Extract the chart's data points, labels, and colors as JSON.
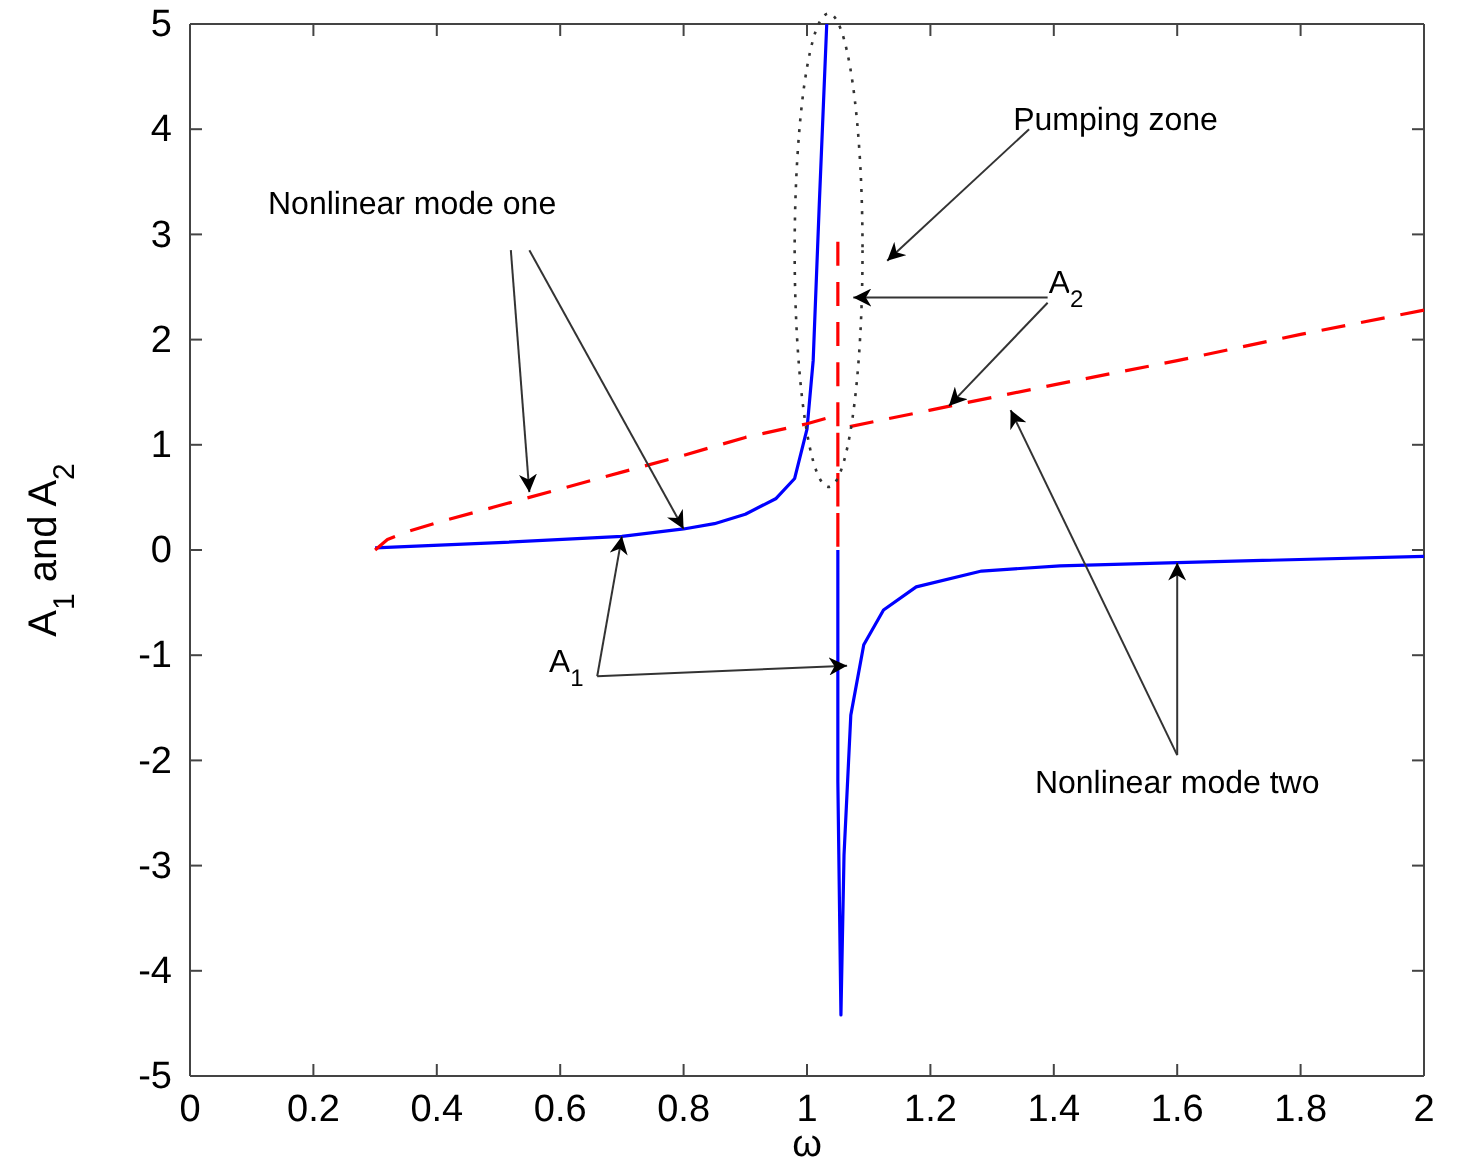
{
  "chart_data": {
    "type": "line",
    "xlabel": "ω",
    "ylabel": "A$_{1}$ and A$_{2}$",
    "xlim": [
      0,
      2
    ],
    "ylim": [
      -5,
      5
    ],
    "xticks": [
      0,
      0.2,
      0.4,
      0.6,
      0.8,
      1,
      1.2,
      1.4,
      1.6,
      1.8,
      2
    ],
    "yticks": [
      -5,
      -4,
      -3,
      -2,
      -1,
      0,
      1,
      2,
      3,
      4,
      5
    ],
    "grid": false,
    "marker": "none",
    "series": [
      {
        "color": "#0000ff",
        "line_style": "solid",
        "x": [
          0.3,
          0.5,
          0.7,
          0.8,
          0.85,
          0.9,
          0.95,
          0.98,
          1.0,
          1.01,
          1.02,
          1.032
        ],
        "values": [
          0.02,
          0.07,
          0.13,
          0.2,
          0.25,
          0.34,
          0.49,
          0.68,
          1.15,
          1.8,
          3.3,
          5
        ]
      },
      {
        "color": "#0000ff",
        "line_style": "solid",
        "x": [
          1.05,
          1.05,
          1.055,
          1.06,
          1.071,
          1.092,
          1.124,
          1.177,
          1.283,
          1.41,
          1.6,
          2.0
        ],
        "values": [
          0,
          -2.2,
          -4.42,
          -2.9,
          -1.57,
          -0.9,
          -0.57,
          -0.35,
          -0.2,
          -0.15,
          -0.12,
          -0.06
        ]
      },
      {
        "color": "#ff0000",
        "line_style": "dashed",
        "x": [
          0.3,
          0.32,
          0.35,
          0.4,
          0.5,
          0.6,
          0.7,
          0.8,
          0.9,
          1.0,
          1.03
        ],
        "values": [
          0,
          0.1,
          0.17,
          0.26,
          0.42,
          0.58,
          0.74,
          0.9,
          1.07,
          1.2,
          1.25
        ]
      },
      {
        "color": "#ff0000",
        "line_style": "dashed",
        "x": [
          1.05,
          1.05,
          1.05,
          1.2,
          1.4,
          1.6,
          1.8,
          2.0
        ],
        "values": [
          2.93,
          0,
          1.15,
          1.33,
          1.57,
          1.8,
          2.05,
          2.28
        ]
      }
    ],
    "annotations": [
      {
        "text": "Nonlinear mode one",
        "x": 0.8,
        "y": 0.2
      },
      "Pumping zone",
      {
        "text": "A$_{2}$",
        "x": 1.23,
        "y": 1.37
      },
      {
        "text": "A$_{1}$",
        "x": 0.7,
        "y": 0.13
      },
      {
        "text": "Nonlinear mode two",
        "x": 1.6,
        "y": -0.12
      }
    ]
  }
}
